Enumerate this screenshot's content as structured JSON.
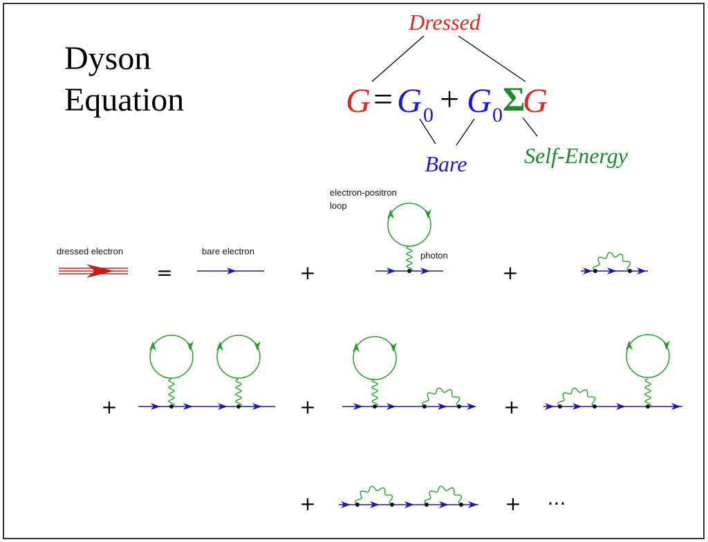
{
  "title": [
    "Dyson",
    "Equation"
  ],
  "equation": {
    "terms": [
      "G",
      "=",
      "G",
      "0",
      "+",
      "G",
      "0",
      "Σ",
      "G"
    ],
    "dressed": "Dressed",
    "bare": "Bare",
    "self_energy": "Self-Energy"
  },
  "diagrams": {
    "dressed_label": "dressed electron",
    "bare_label": "bare electron",
    "loop_label": [
      "electron-positron",
      "loop"
    ],
    "photon_label": "photon",
    "operators": [
      "=",
      "+",
      "+",
      "+",
      "+",
      "+",
      "+",
      "+"
    ],
    "ellipsis": "···"
  }
}
